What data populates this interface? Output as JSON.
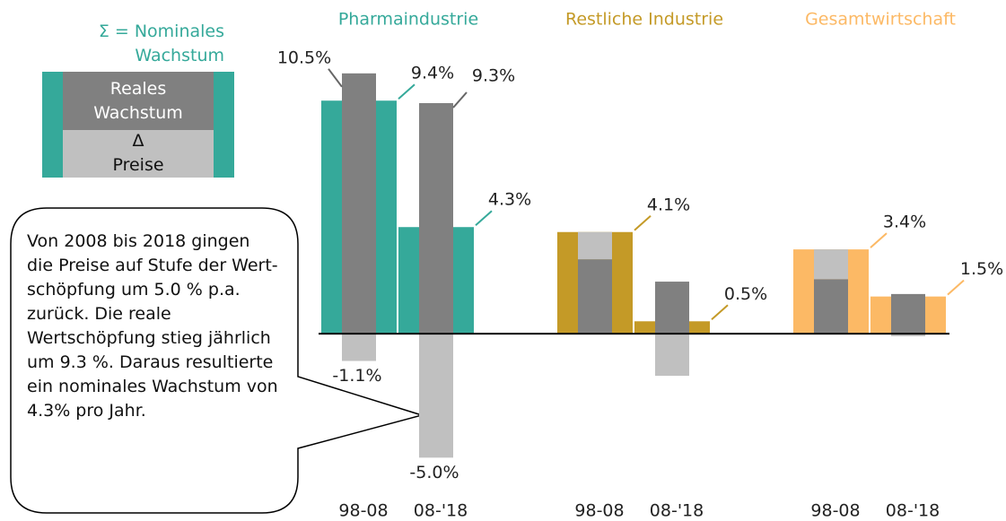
{
  "chart_data": {
    "type": "bar",
    "groups": [
      {
        "name": "Pharmaindustrie",
        "color": "#35a99a"
      },
      {
        "name": "Restliche Industrie",
        "color": "#c49a27"
      },
      {
        "name": "Gesamtwirtschaft",
        "color": "#fcb965"
      }
    ],
    "categories": [
      "98-08",
      "08-'18",
      "98-08",
      "08-'18",
      "98-08",
      "08-'18"
    ],
    "series": [
      {
        "name": "Σ = Nominales Wachstum",
        "values": [
          9.4,
          4.3,
          4.1,
          0.5,
          3.4,
          1.5
        ],
        "value_labels": [
          "9.4%",
          "4.3%",
          "4.1%",
          "0.5%",
          "3.4%",
          "1.5%"
        ]
      },
      {
        "name": "Reales Wachstum",
        "color": "#808080",
        "values": [
          10.5,
          9.3,
          3.0,
          2.1,
          2.2,
          1.6
        ],
        "value_labels": [
          "10.5%",
          "9.3%",
          null,
          null,
          null,
          null
        ]
      },
      {
        "name": "Δ Preise",
        "color": "#c0c0c0",
        "values": [
          -1.1,
          -5.0,
          1.1,
          -1.7,
          1.2,
          -0.1
        ],
        "value_labels": [
          "-1.1%",
          "-5.0%",
          null,
          null,
          null,
          null
        ]
      }
    ],
    "ylim": [
      -6,
      11
    ],
    "annotation": "Von 2008 bis 2018 gingen die Preise auf Stufe der Wert-schöpfung um 5.0 % p.a. zurück. Die reale Wertschöpfung stieg jährlich um 9.3 %. Daraus resultierte ein nominales Wachstum von 4.3% pro Jahr."
  }
}
